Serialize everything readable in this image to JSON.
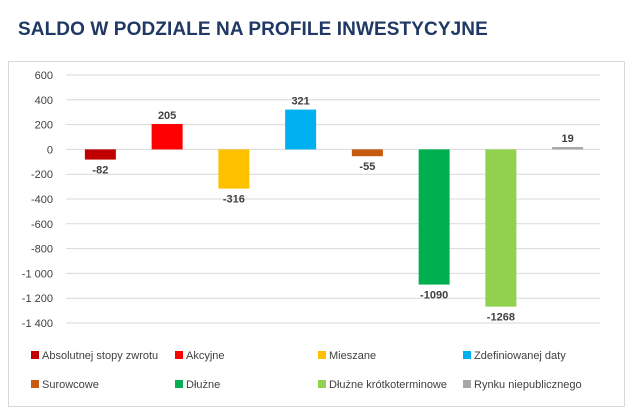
{
  "title": "SALDO W PODZIALE NA PROFILE INWESTYCYJNE",
  "chart_data": {
    "type": "bar",
    "title": "SALDO W PODZIALE NA PROFILE INWESTYCYJNE",
    "xlabel": "",
    "ylabel": "",
    "ylim": [
      -1400,
      600
    ],
    "yticks": [
      600,
      400,
      200,
      0,
      -200,
      -400,
      -600,
      -800,
      -1000,
      -1200,
      -1400
    ],
    "ytick_labels": [
      "600",
      "400",
      "200",
      "0",
      "-200",
      "-400",
      "-600",
      "-800",
      "-1 000",
      "-1 200",
      "-1 400"
    ],
    "grid": true,
    "legend_position": "bottom",
    "categories": [
      "Absolutnej stopy zwrotu",
      "Akcyjne",
      "Mieszane",
      "Zdefiniowanej daty",
      "Surowcowe",
      "Dłużne",
      "Dłużne krótkoterminowe",
      "Rynku niepublicznego"
    ],
    "values": [
      -82,
      205,
      -316,
      321,
      -55,
      -1090,
      -1268,
      19
    ],
    "value_labels": [
      "-82",
      "205",
      "-316",
      "321",
      "-55",
      "-1090",
      "-1268",
      "19"
    ],
    "colors": [
      "#c00000",
      "#ff0000",
      "#ffc000",
      "#00b0f0",
      "#c55a11",
      "#00b050",
      "#92d050",
      "#a6a6a6"
    ]
  }
}
